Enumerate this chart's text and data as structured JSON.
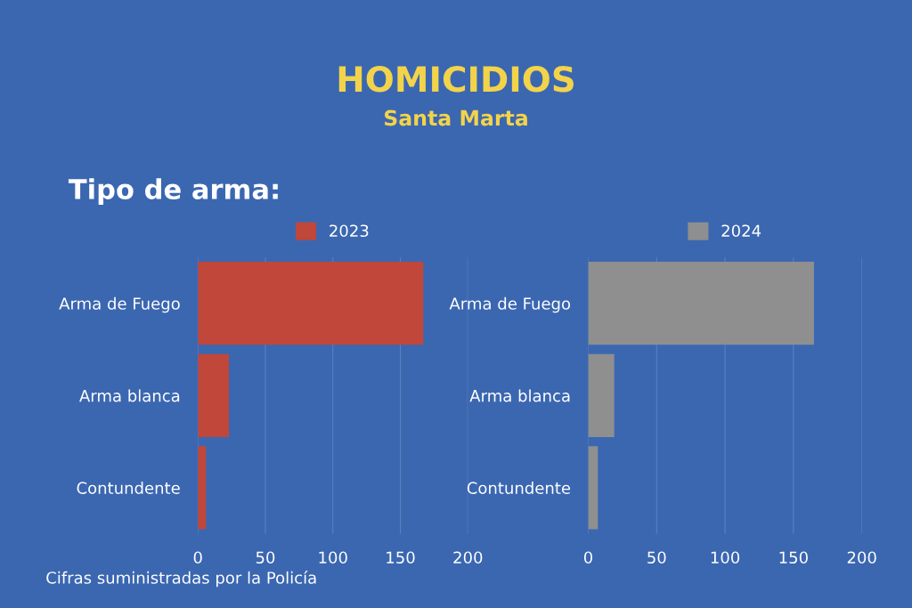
{
  "chart_data": [
    {
      "type": "bar",
      "orientation": "horizontal",
      "title": "HOMICIDIOS",
      "subtitle": "Santa Marta",
      "categories": [
        "Arma de Fuego",
        "Arma blanca",
        "Contundente"
      ],
      "series": [
        {
          "name": "2023",
          "color": "#c0473a",
          "values": [
            167,
            23,
            6
          ]
        }
      ],
      "xlim": [
        0,
        200
      ],
      "xticks": [
        0,
        50,
        100,
        150,
        200
      ],
      "grid": "x",
      "legend": "top",
      "annotations": [
        "Tipo de arma:",
        "Cifras suministradas por la Policía"
      ]
    },
    {
      "type": "bar",
      "orientation": "horizontal",
      "categories": [
        "Arma de Fuego",
        "Arma blanca",
        "Contundente"
      ],
      "series": [
        {
          "name": "2024",
          "color": "#8f8f8f",
          "values": [
            165,
            19,
            7
          ]
        }
      ],
      "xlim": [
        0,
        200
      ],
      "xticks": [
        0,
        50,
        100,
        150,
        200
      ],
      "grid": "x",
      "legend": "top"
    }
  ]
}
